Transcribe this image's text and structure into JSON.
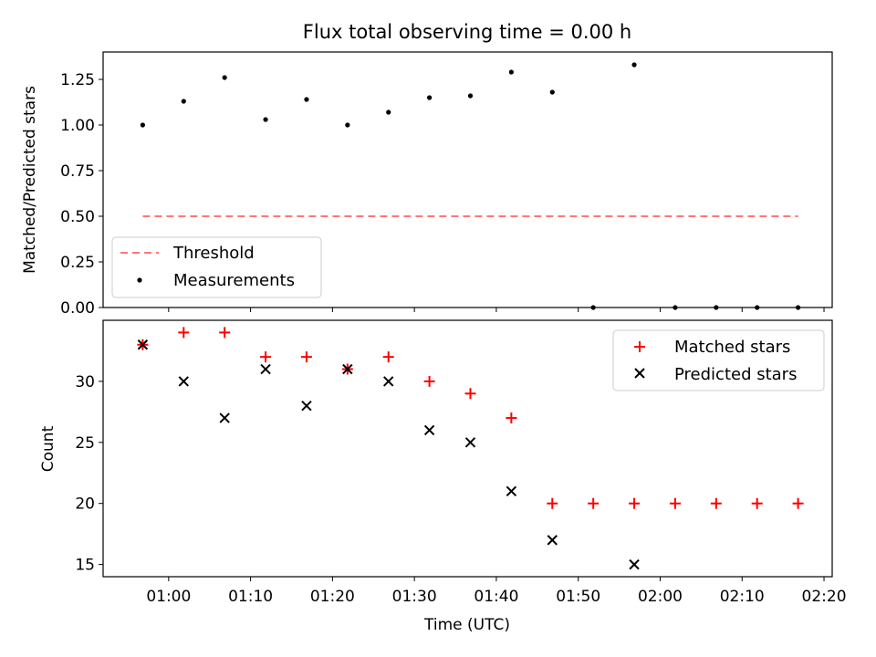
{
  "chart_data": [
    {
      "type": "scatter",
      "title": "Flux total observing time = 0.00 h",
      "xlabel": "",
      "ylabel": "Matched/Predicted stars",
      "ylim": [
        0,
        1.4
      ],
      "yticks": [
        0.0,
        0.25,
        0.5,
        0.75,
        1.0,
        1.25
      ],
      "ytick_labels": [
        "0.00",
        "0.25",
        "0.50",
        "0.75",
        "1.00",
        "1.25"
      ],
      "x_time_range": [
        "00:52",
        "02:21"
      ],
      "grid": false,
      "legend": "lower-left",
      "series": [
        {
          "name": "Threshold",
          "style": "dashed-line",
          "color": "#ff7777",
          "x": [
            "00:56:50",
            "02:16:50"
          ],
          "y": [
            0.5,
            0.5
          ]
        },
        {
          "name": "Measurements",
          "style": "dot",
          "color": "#000000",
          "x": [
            "00:56:50",
            "01:01:50",
            "01:06:50",
            "01:11:50",
            "01:16:50",
            "01:21:50",
            "01:26:50",
            "01:31:50",
            "01:36:50",
            "01:41:50",
            "01:46:50",
            "01:51:50",
            "01:56:50",
            "02:01:50",
            "02:06:50",
            "02:11:50",
            "02:16:50"
          ],
          "y": [
            1.0,
            1.13,
            1.26,
            1.03,
            1.14,
            1.0,
            1.07,
            1.15,
            1.16,
            1.29,
            1.18,
            0.0,
            1.33,
            0.0,
            0.0,
            0.0,
            0.0
          ]
        }
      ]
    },
    {
      "type": "scatter",
      "title": "",
      "xlabel": "Time (UTC)",
      "ylabel": "Count",
      "ylim": [
        14,
        35
      ],
      "yticks": [
        15,
        20,
        25,
        30
      ],
      "ytick_labels": [
        "15",
        "20",
        "25",
        "30"
      ],
      "xtick_labels": [
        "01:00",
        "01:10",
        "01:20",
        "01:30",
        "01:40",
        "01:50",
        "02:00",
        "02:10",
        "02:20"
      ],
      "x_time_range": [
        "00:52",
        "02:21"
      ],
      "grid": false,
      "legend": "upper-right",
      "series": [
        {
          "name": "Matched stars",
          "style": "plus",
          "color": "#ff0000",
          "x": [
            "00:56:50",
            "01:01:50",
            "01:06:50",
            "01:11:50",
            "01:16:50",
            "01:21:50",
            "01:26:50",
            "01:31:50",
            "01:36:50",
            "01:41:50",
            "01:46:50",
            "01:51:50",
            "01:56:50",
            "02:01:50",
            "02:06:50",
            "02:11:50",
            "02:16:50"
          ],
          "y": [
            33,
            34,
            34,
            32,
            32,
            31,
            32,
            30,
            29,
            27,
            20,
            20,
            20,
            20,
            20,
            20,
            20
          ]
        },
        {
          "name": "Predicted stars",
          "style": "x",
          "color": "#000000",
          "x": [
            "00:56:50",
            "01:01:50",
            "01:06:50",
            "01:11:50",
            "01:16:50",
            "01:21:50",
            "01:26:50",
            "01:31:50",
            "01:36:50",
            "01:41:50",
            "01:46:50",
            "01:56:50"
          ],
          "y": [
            33,
            30,
            27,
            31,
            28,
            31,
            30,
            26,
            25,
            21,
            17,
            15
          ]
        }
      ]
    }
  ]
}
